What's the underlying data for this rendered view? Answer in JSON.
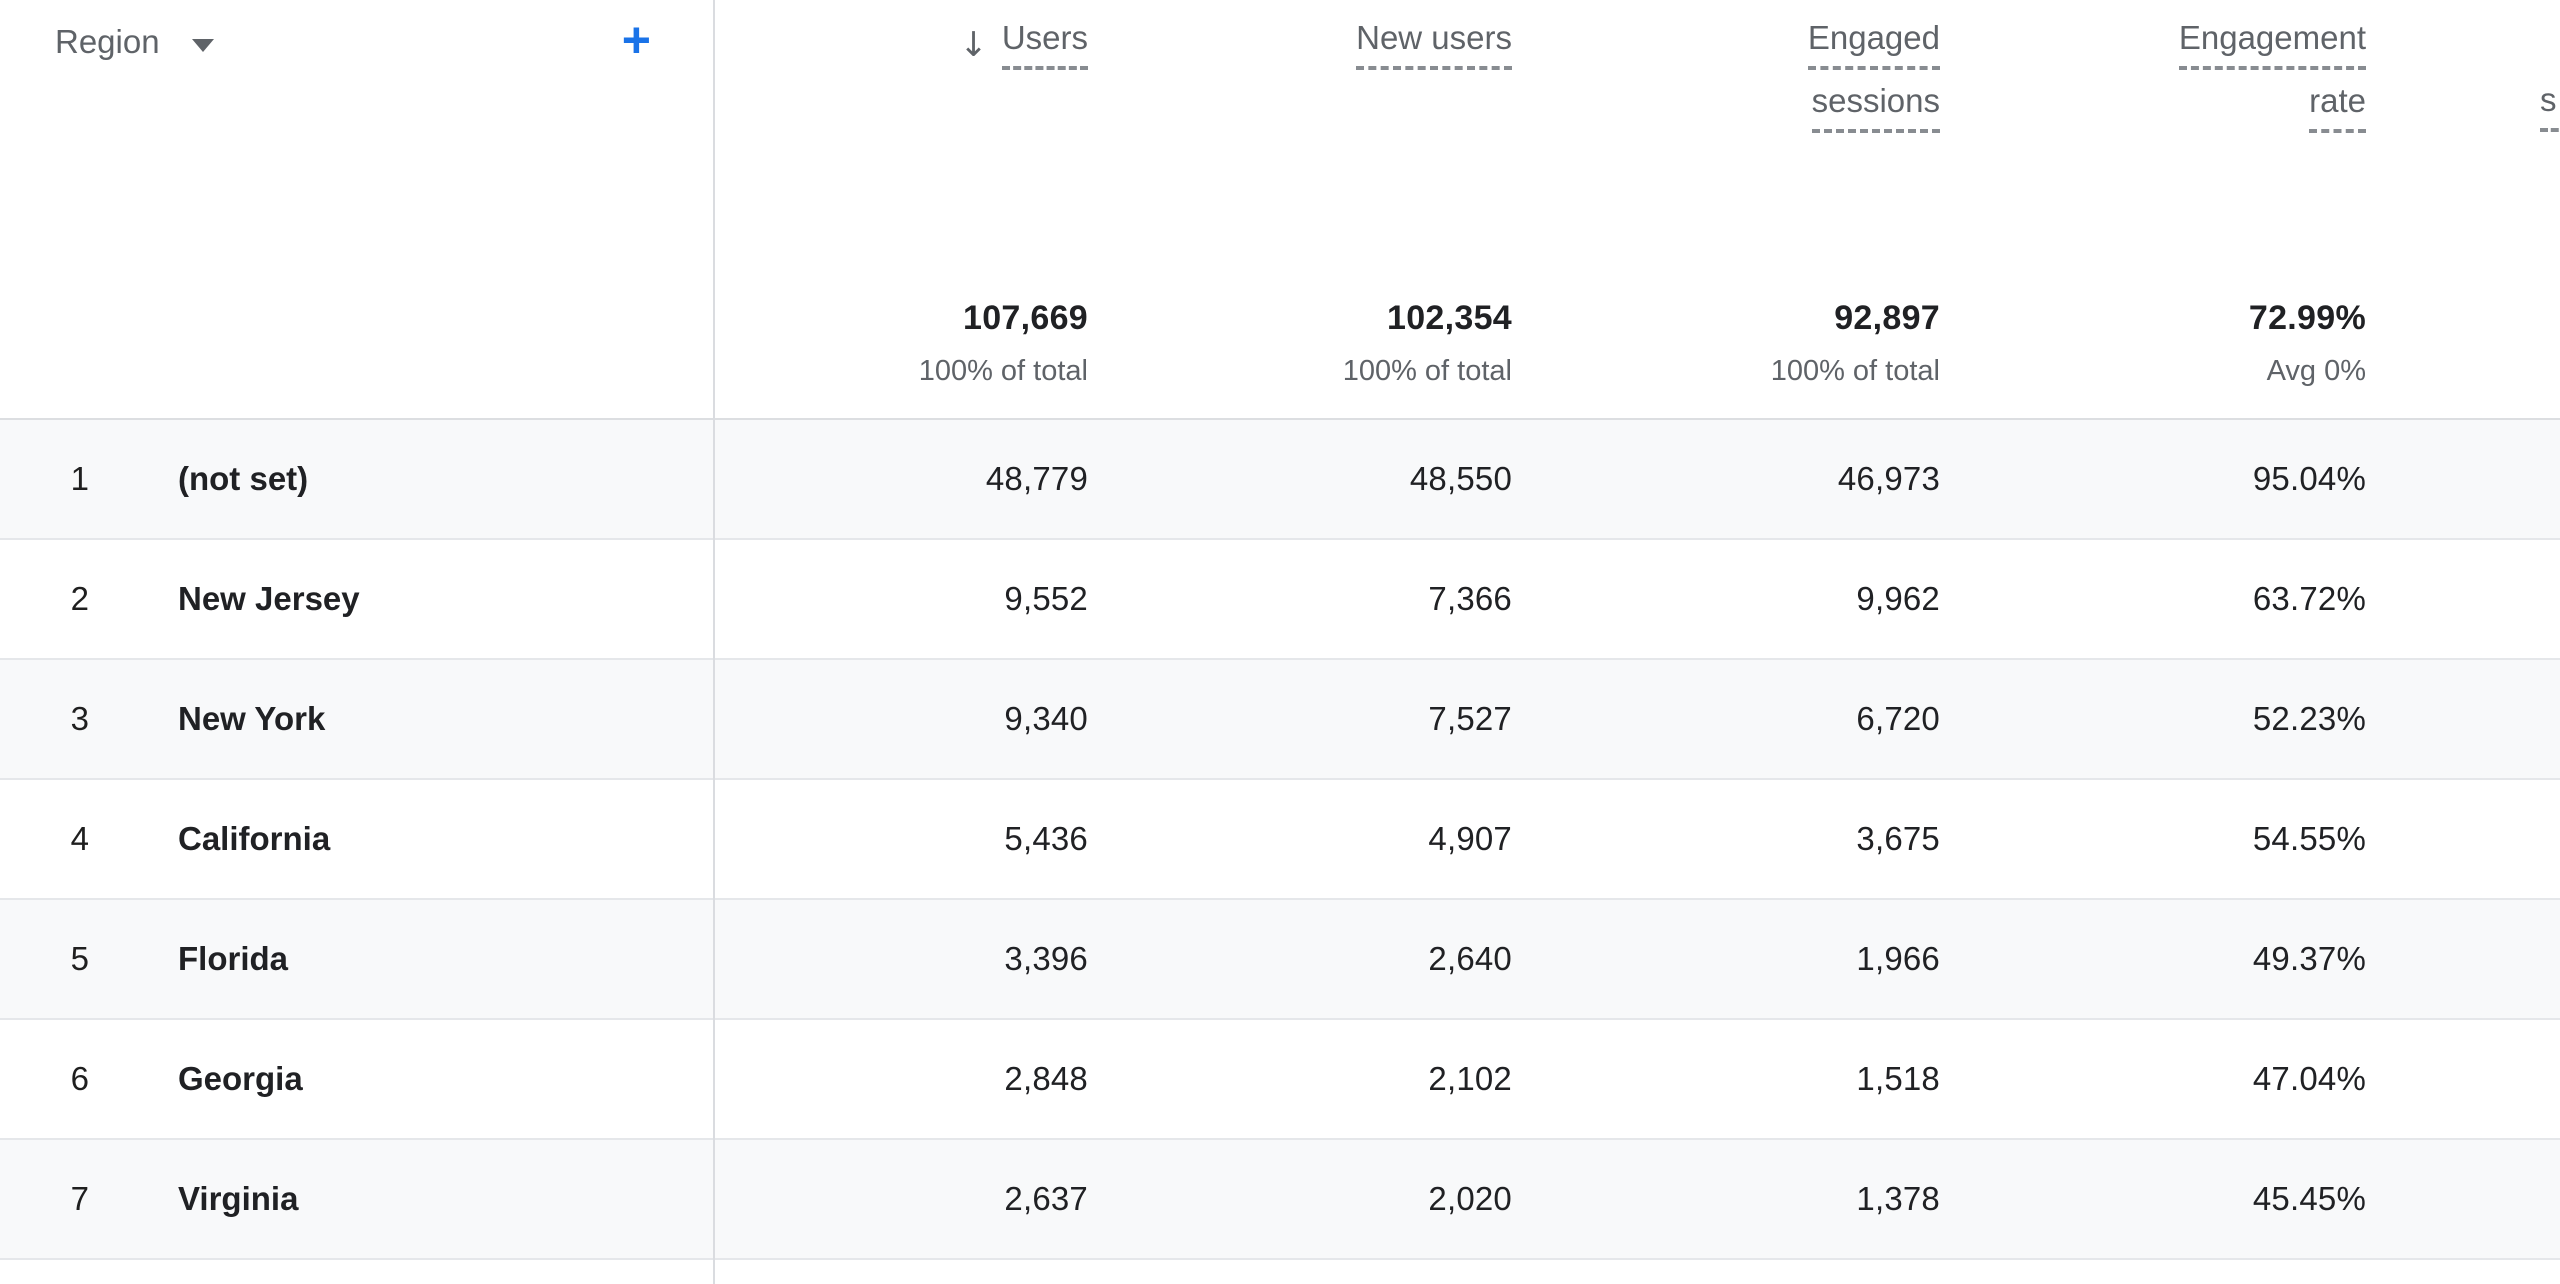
{
  "table": {
    "dimension": {
      "label": "Region"
    },
    "icons": {
      "sort_desc": "↓",
      "add": "+"
    },
    "columns": [
      {
        "id": "users",
        "label": "Users",
        "sorted": "descending",
        "total": "107,669",
        "subtotal": "100% of total"
      },
      {
        "id": "new_users",
        "label": "New users",
        "total": "102,354",
        "subtotal": "100% of total"
      },
      {
        "id": "engaged_sessions",
        "line1": "Engaged",
        "line2": "sessions",
        "total": "92,897",
        "subtotal": "100% of total"
      },
      {
        "id": "engagement_rate",
        "line1": "Engagement",
        "line2": "rate",
        "total": "72.99%",
        "subtotal": "Avg 0%"
      },
      {
        "id": "next_column_truncated",
        "visible_text": "s"
      }
    ],
    "rows": [
      {
        "num": "1",
        "region": "(not set)",
        "users": "48,779",
        "new_users": "48,550",
        "engaged_sessions": "46,973",
        "engagement_rate": "95.04%"
      },
      {
        "num": "2",
        "region": "New Jersey",
        "users": "9,552",
        "new_users": "7,366",
        "engaged_sessions": "9,962",
        "engagement_rate": "63.72%"
      },
      {
        "num": "3",
        "region": "New York",
        "users": "9,340",
        "new_users": "7,527",
        "engaged_sessions": "6,720",
        "engagement_rate": "52.23%"
      },
      {
        "num": "4",
        "region": "California",
        "users": "5,436",
        "new_users": "4,907",
        "engaged_sessions": "3,675",
        "engagement_rate": "54.55%"
      },
      {
        "num": "5",
        "region": "Florida",
        "users": "3,396",
        "new_users": "2,640",
        "engaged_sessions": "1,966",
        "engagement_rate": "49.37%"
      },
      {
        "num": "6",
        "region": "Georgia",
        "users": "2,848",
        "new_users": "2,102",
        "engaged_sessions": "1,518",
        "engagement_rate": "47.04%"
      },
      {
        "num": "7",
        "region": "Virginia",
        "users": "2,637",
        "new_users": "2,020",
        "engaged_sessions": "1,378",
        "engagement_rate": "45.45%"
      }
    ],
    "colors": {
      "accent_blue": "#1a73e8",
      "text_primary": "#202124",
      "text_secondary": "#5f6368",
      "row_alt": "#f8f9fa",
      "divider": "#dadce0"
    }
  }
}
